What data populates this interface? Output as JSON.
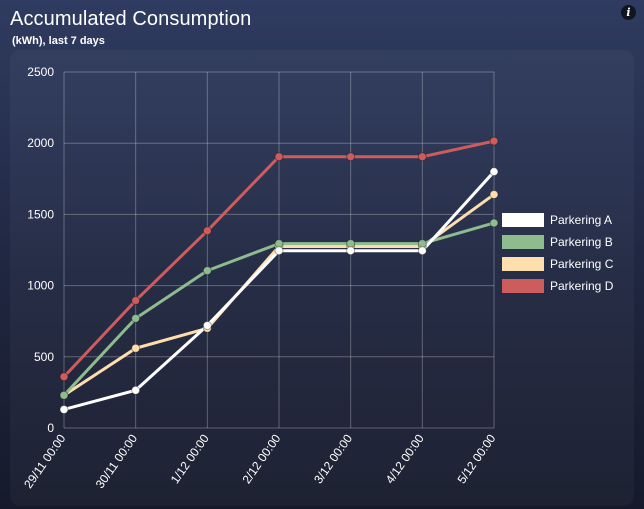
{
  "header": {
    "title": "Accumulated Consumption",
    "subtitle": "(kWh), last 7 days",
    "info_icon": "i"
  },
  "chart_data": {
    "type": "line",
    "title": "Accumulated Consumption",
    "subtitle": "(kWh), last 7 days",
    "categories": [
      "29/11 00:00",
      "30/11 00:00",
      "1/12 00:00",
      "2/12 00:00",
      "3/12 00:00",
      "4/12 00:00",
      "5/12 00:00"
    ],
    "ylim": [
      0,
      2500
    ],
    "yticks": [
      0,
      500,
      1000,
      1500,
      2000,
      2500
    ],
    "grid": true,
    "legend_position": "right",
    "series": [
      {
        "name": "Parkering A",
        "color": "#ffffff",
        "values": [
          130,
          265,
          720,
          1245,
          1245,
          1245,
          1800
        ]
      },
      {
        "name": "Parkering B",
        "color": "#8fbc8f",
        "values": [
          230,
          770,
          1105,
          1295,
          1295,
          1295,
          1440
        ]
      },
      {
        "name": "Parkering C",
        "color": "#ffdead",
        "values": [
          230,
          560,
          700,
          1275,
          1275,
          1275,
          1640
        ]
      },
      {
        "name": "Parkering D",
        "color": "#cd5c5c",
        "values": [
          360,
          895,
          1385,
          1905,
          1905,
          1905,
          2015
        ]
      }
    ]
  }
}
